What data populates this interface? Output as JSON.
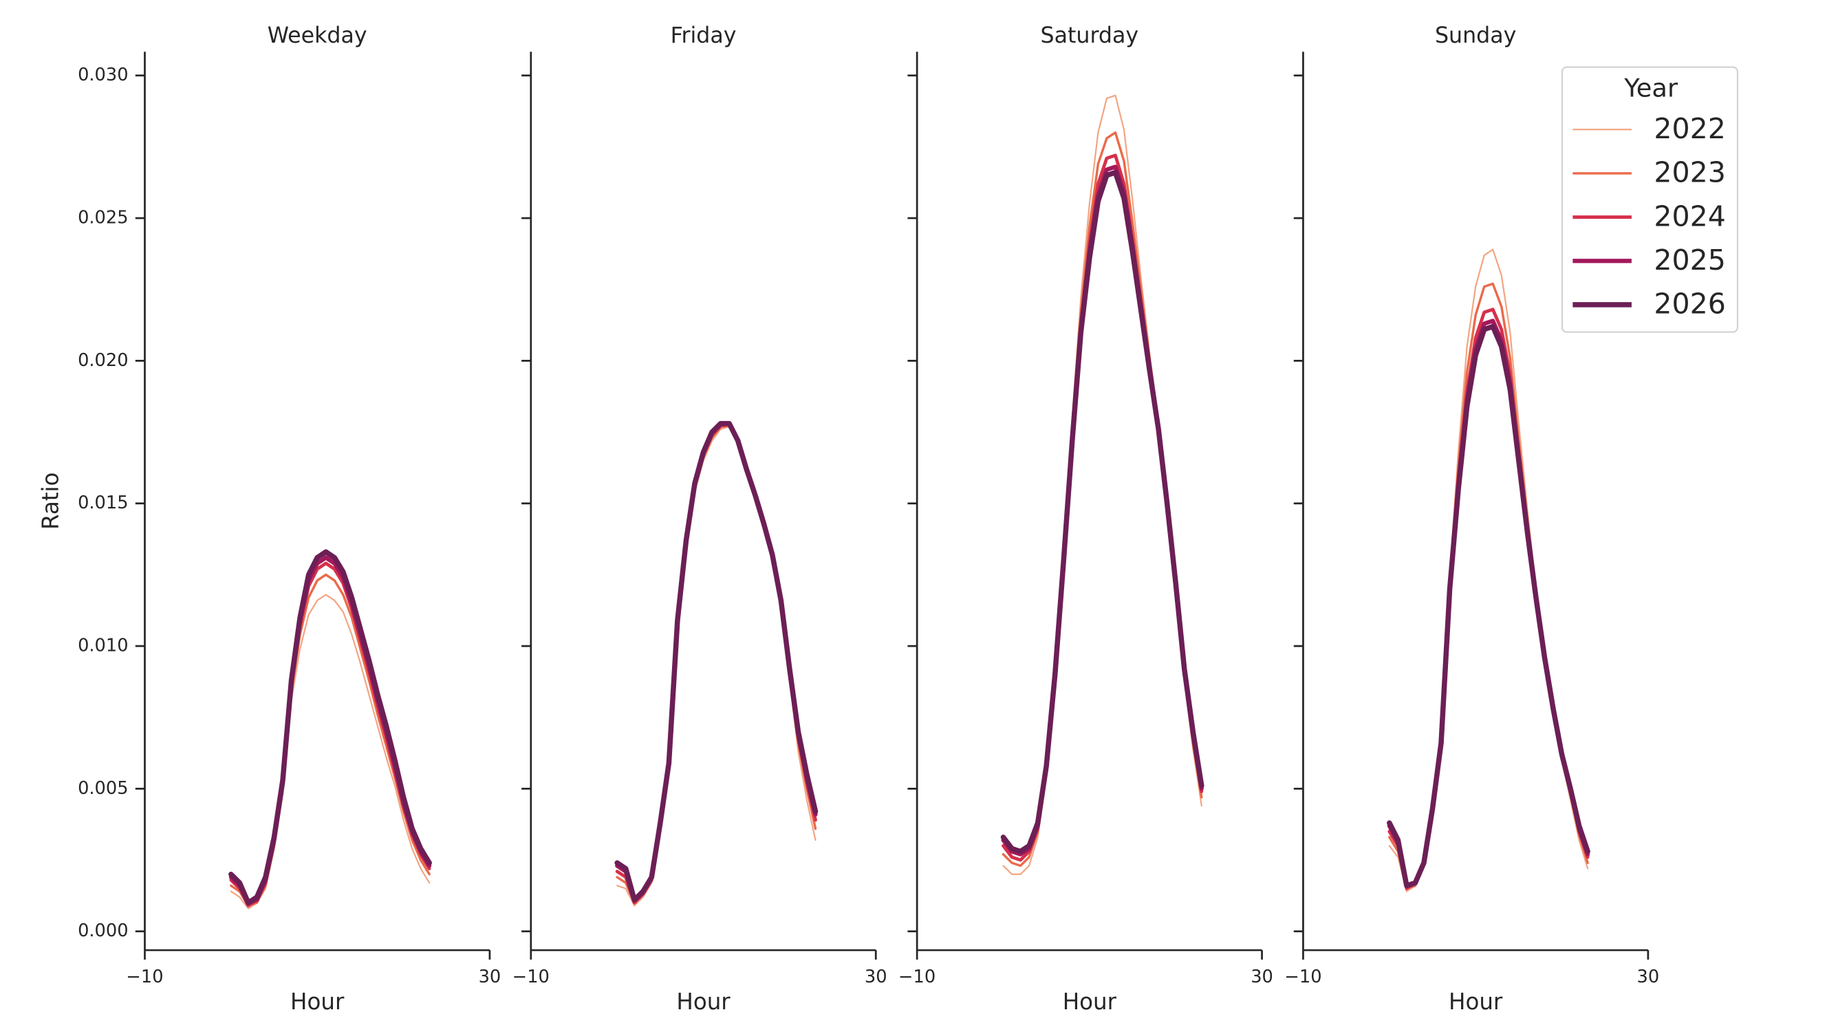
{
  "chart_data": [
    {
      "type": "line",
      "title": "Weekday",
      "xlabel": "Hour",
      "ylabel": "Ratio",
      "xlim": [
        -10,
        30
      ],
      "xticks": [
        {
          "value": -10,
          "label": "−10"
        },
        30
      ],
      "ylim": [
        -0.00066,
        0.03083
      ],
      "yticks": [
        {
          "value": 0,
          "label": "0.000"
        },
        {
          "value": 0.005,
          "label": "0.005"
        },
        {
          "value": 0.01,
          "label": "0.010"
        },
        {
          "value": 0.015,
          "label": "0.015"
        },
        {
          "value": 0.02,
          "label": "0.020"
        },
        {
          "value": 0.025,
          "label": "0.025"
        },
        {
          "value": 0.03,
          "label": "0.030"
        }
      ],
      "x": [
        0,
        1,
        2,
        3,
        4,
        5,
        6,
        7,
        8,
        9,
        10,
        11,
        12,
        13,
        14,
        15,
        16,
        17,
        18,
        19,
        20,
        21,
        22,
        23
      ],
      "series": [
        {
          "color": "#f3a583",
          "values": [
            0.0014,
            0.0012,
            0.0008,
            0.001,
            0.0015,
            0.0029,
            0.0048,
            0.0081,
            0.0099,
            0.0111,
            0.0116,
            0.0118,
            0.0116,
            0.0112,
            0.0104,
            0.0094,
            0.0083,
            0.0072,
            0.0061,
            0.0051,
            0.0039,
            0.0029,
            0.0022,
            0.0017
          ]
        },
        {
          "color": "#ea6a4a",
          "values": [
            0.0016,
            0.0014,
            0.0009,
            0.001,
            0.0016,
            0.003,
            0.005,
            0.0084,
            0.0104,
            0.0117,
            0.0123,
            0.0125,
            0.0123,
            0.0118,
            0.011,
            0.0099,
            0.0088,
            0.0076,
            0.0065,
            0.0054,
            0.0042,
            0.0032,
            0.0025,
            0.002
          ]
        },
        {
          "color": "#d6304b",
          "values": [
            0.0018,
            0.0015,
            0.0009,
            0.0011,
            0.0017,
            0.0031,
            0.0051,
            0.0086,
            0.0107,
            0.0121,
            0.0127,
            0.0129,
            0.0127,
            0.0122,
            0.0113,
            0.0102,
            0.0091,
            0.0079,
            0.0068,
            0.0056,
            0.0044,
            0.0034,
            0.0027,
            0.0022
          ]
        },
        {
          "color": "#a3195b",
          "values": [
            0.0019,
            0.0016,
            0.001,
            0.0011,
            0.0018,
            0.0032,
            0.0052,
            0.0087,
            0.0109,
            0.0123,
            0.0129,
            0.0131,
            0.0129,
            0.0124,
            0.0115,
            0.0104,
            0.0093,
            0.0081,
            0.007,
            0.0058,
            0.0045,
            0.0035,
            0.0028,
            0.0023
          ]
        },
        {
          "color": "#6c1f56",
          "values": [
            0.002,
            0.0017,
            0.001,
            0.0012,
            0.0019,
            0.0033,
            0.0053,
            0.0088,
            0.011,
            0.0125,
            0.0131,
            0.0133,
            0.0131,
            0.0126,
            0.0117,
            0.0106,
            0.0095,
            0.0083,
            0.0072,
            0.006,
            0.0047,
            0.0036,
            0.0029,
            0.0024
          ]
        }
      ]
    },
    {
      "type": "line",
      "title": "Friday",
      "xlabel": "Hour",
      "xlim": [
        -10,
        30
      ],
      "xticks": [
        {
          "value": -10,
          "label": "−10"
        },
        30
      ],
      "ylim": [
        -0.00066,
        0.03083
      ],
      "yticks": [
        0,
        0.005,
        0.01,
        0.015,
        0.02,
        0.025,
        0.03
      ],
      "x": [
        0,
        1,
        2,
        3,
        4,
        5,
        6,
        7,
        8,
        9,
        10,
        11,
        12,
        13,
        14,
        15,
        16,
        17,
        18,
        19,
        20,
        21,
        22,
        23
      ],
      "series": [
        {
          "color": "#f3a583",
          "values": [
            0.0016,
            0.0015,
            0.0009,
            0.0012,
            0.0017,
            0.0036,
            0.0057,
            0.0107,
            0.0135,
            0.0154,
            0.0165,
            0.0172,
            0.0176,
            0.0177,
            0.0171,
            0.0161,
            0.0152,
            0.0142,
            0.013,
            0.0113,
            0.0088,
            0.0063,
            0.0046,
            0.0032
          ]
        },
        {
          "color": "#ea6a4a",
          "values": [
            0.0019,
            0.0017,
            0.001,
            0.0013,
            0.0018,
            0.0037,
            0.0058,
            0.0108,
            0.0136,
            0.0155,
            0.0166,
            0.0173,
            0.0177,
            0.0177,
            0.0171,
            0.0161,
            0.0152,
            0.0142,
            0.0131,
            0.0114,
            0.009,
            0.0066,
            0.005,
            0.0036
          ]
        },
        {
          "color": "#d6304b",
          "values": [
            0.0021,
            0.0019,
            0.001,
            0.0013,
            0.0018,
            0.0037,
            0.0058,
            0.0108,
            0.0136,
            0.0156,
            0.0167,
            0.0174,
            0.0177,
            0.0178,
            0.0172,
            0.0162,
            0.0153,
            0.0143,
            0.0131,
            0.0115,
            0.0091,
            0.0068,
            0.0052,
            0.0039
          ]
        },
        {
          "color": "#a3195b",
          "values": [
            0.0023,
            0.0021,
            0.0011,
            0.0014,
            0.0019,
            0.0038,
            0.0059,
            0.0109,
            0.0137,
            0.0157,
            0.0168,
            0.0175,
            0.0178,
            0.0178,
            0.0172,
            0.0162,
            0.0153,
            0.0143,
            0.0132,
            0.0116,
            0.0091,
            0.0069,
            0.0054,
            0.0041
          ]
        },
        {
          "color": "#6c1f56",
          "values": [
            0.0024,
            0.0022,
            0.0011,
            0.0014,
            0.0019,
            0.0038,
            0.0059,
            0.0109,
            0.0137,
            0.0157,
            0.0168,
            0.0175,
            0.0178,
            0.0178,
            0.0172,
            0.0162,
            0.0153,
            0.0143,
            0.0132,
            0.0116,
            0.0092,
            0.007,
            0.0055,
            0.0042
          ]
        }
      ]
    },
    {
      "type": "line",
      "title": "Saturday",
      "xlabel": "Hour",
      "xlim": [
        -10,
        30
      ],
      "xticks": [
        {
          "value": -10,
          "label": "−10"
        },
        30
      ],
      "ylim": [
        -0.00066,
        0.03083
      ],
      "yticks": [
        0,
        0.005,
        0.01,
        0.015,
        0.02,
        0.025,
        0.03
      ],
      "x": [
        0,
        1,
        2,
        3,
        4,
        5,
        6,
        7,
        8,
        9,
        10,
        11,
        12,
        13,
        14,
        15,
        16,
        17,
        18,
        19,
        20,
        21,
        22,
        23
      ],
      "series": [
        {
          "color": "#f3a583",
          "values": [
            0.0023,
            0.002,
            0.002,
            0.0023,
            0.0033,
            0.0054,
            0.0088,
            0.0132,
            0.018,
            0.0222,
            0.0255,
            0.028,
            0.0292,
            0.0293,
            0.0281,
            0.0256,
            0.0228,
            0.0202,
            0.0179,
            0.015,
            0.012,
            0.0088,
            0.0064,
            0.0044
          ]
        },
        {
          "color": "#ea6a4a",
          "values": [
            0.0027,
            0.0024,
            0.0023,
            0.0026,
            0.0035,
            0.0056,
            0.0089,
            0.0131,
            0.0177,
            0.0217,
            0.0247,
            0.0269,
            0.0278,
            0.028,
            0.027,
            0.0248,
            0.0224,
            0.02,
            0.0178,
            0.015,
            0.0121,
            0.009,
            0.0066,
            0.0047
          ]
        },
        {
          "color": "#d6304b",
          "values": [
            0.003,
            0.0026,
            0.0025,
            0.0028,
            0.0036,
            0.0057,
            0.0089,
            0.013,
            0.0174,
            0.0213,
            0.0241,
            0.0262,
            0.0271,
            0.0272,
            0.0262,
            0.0242,
            0.022,
            0.0198,
            0.0177,
            0.015,
            0.0121,
            0.0091,
            0.0068,
            0.0049
          ]
        },
        {
          "color": "#a3195b",
          "values": [
            0.0032,
            0.0028,
            0.0027,
            0.0029,
            0.0037,
            0.0058,
            0.009,
            0.013,
            0.0173,
            0.0211,
            0.0238,
            0.0258,
            0.0267,
            0.0268,
            0.0259,
            0.024,
            0.0218,
            0.0197,
            0.0176,
            0.015,
            0.0122,
            0.0092,
            0.0069,
            0.005
          ]
        },
        {
          "color": "#6c1f56",
          "values": [
            0.0033,
            0.0029,
            0.0028,
            0.003,
            0.0038,
            0.0058,
            0.009,
            0.013,
            0.0172,
            0.021,
            0.0236,
            0.0256,
            0.0265,
            0.0266,
            0.0257,
            0.0238,
            0.0217,
            0.0196,
            0.0176,
            0.015,
            0.0122,
            0.0092,
            0.007,
            0.0051
          ]
        }
      ]
    },
    {
      "type": "line",
      "title": "Sunday",
      "xlabel": "Hour",
      "xlim": [
        -10,
        30
      ],
      "xticks": [
        {
          "value": -10,
          "label": "−10"
        },
        30
      ],
      "ylim": [
        -0.00066,
        0.03083
      ],
      "yticks": [
        0,
        0.005,
        0.01,
        0.015,
        0.02,
        0.025,
        0.03
      ],
      "legend": {
        "title": "Year",
        "loc": "upper right"
      },
      "x": [
        0,
        1,
        2,
        3,
        4,
        5,
        6,
        7,
        8,
        9,
        10,
        11,
        12,
        13,
        14,
        15,
        16,
        17,
        18,
        19,
        20,
        21,
        22,
        23
      ],
      "series": [
        {
          "name": "2022",
          "color": "#f3a583",
          "values": [
            0.003,
            0.0026,
            0.0014,
            0.0016,
            0.0023,
            0.0042,
            0.0066,
            0.0125,
            0.0168,
            0.0205,
            0.0226,
            0.0237,
            0.0239,
            0.023,
            0.021,
            0.0178,
            0.0148,
            0.012,
            0.0097,
            0.0077,
            0.006,
            0.0046,
            0.0032,
            0.0022
          ]
        },
        {
          "name": "2023",
          "color": "#ea6a4a",
          "values": [
            0.0033,
            0.0028,
            0.0015,
            0.0016,
            0.0023,
            0.0042,
            0.0066,
            0.0123,
            0.0163,
            0.0196,
            0.0216,
            0.0226,
            0.0227,
            0.0219,
            0.0201,
            0.0172,
            0.0144,
            0.0118,
            0.0096,
            0.0077,
            0.0061,
            0.0048,
            0.0034,
            0.0024
          ]
        },
        {
          "name": "2024",
          "color": "#d6304b",
          "values": [
            0.0035,
            0.003,
            0.0015,
            0.0017,
            0.0024,
            0.0043,
            0.0066,
            0.0121,
            0.0159,
            0.0189,
            0.0208,
            0.0217,
            0.0218,
            0.0211,
            0.0195,
            0.0168,
            0.0142,
            0.0117,
            0.0096,
            0.0078,
            0.0061,
            0.0049,
            0.0035,
            0.0026
          ]
        },
        {
          "name": "2025",
          "color": "#a3195b",
          "values": [
            0.0037,
            0.0031,
            0.0016,
            0.0017,
            0.0024,
            0.0043,
            0.0066,
            0.012,
            0.0156,
            0.0186,
            0.0204,
            0.0213,
            0.0214,
            0.0207,
            0.0192,
            0.0166,
            0.0141,
            0.0117,
            0.0096,
            0.0078,
            0.0062,
            0.005,
            0.0036,
            0.0027
          ]
        },
        {
          "name": "2026",
          "color": "#6c1f56",
          "values": [
            0.0038,
            0.0032,
            0.0016,
            0.0017,
            0.0024,
            0.0043,
            0.0066,
            0.012,
            0.0155,
            0.0184,
            0.0202,
            0.0211,
            0.0212,
            0.0205,
            0.019,
            0.0165,
            0.014,
            0.0117,
            0.0096,
            0.0078,
            0.0062,
            0.005,
            0.0037,
            0.0028
          ]
        }
      ]
    }
  ]
}
